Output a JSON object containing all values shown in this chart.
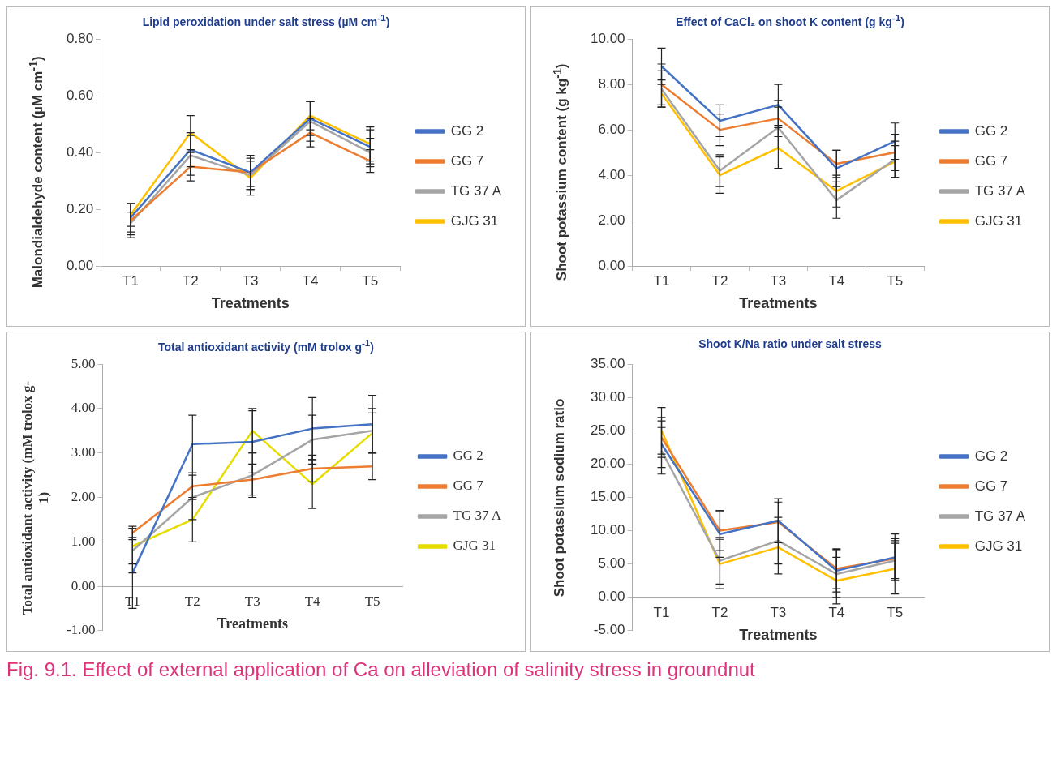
{
  "chart_data": [
    {
      "type": "line",
      "title": "Lipid peroxidation under salt stress (µM cm$^{-1}$)",
      "xlabel": "Treatments",
      "ylabel": "Malondialdehyde content (µM cm$^{-1}$)",
      "categories": [
        "T1",
        "T2",
        "T3",
        "T4",
        "T5"
      ],
      "legend": "right",
      "grid": false,
      "marker": "none",
      "ylim": [
        0,
        0.8
      ],
      "yticks": [
        {
          "value": 0,
          "label": "0.00"
        },
        {
          "value": 0.2,
          "label": "0.20"
        },
        {
          "value": 0.4,
          "label": "0.40"
        },
        {
          "value": 0.6,
          "label": "0.60"
        },
        {
          "value": 0.8,
          "label": "0.80"
        }
      ],
      "series": [
        {
          "name": "GG 2",
          "color": "#4472c4",
          "values": [
            0.17,
            0.41,
            0.33,
            0.52,
            0.42
          ],
          "errors": [
            0.05,
            0.06,
            0.06,
            0.06,
            0.06
          ]
        },
        {
          "name": "GG 7",
          "color": "#ed7d31",
          "values": [
            0.16,
            0.35,
            0.33,
            0.47,
            0.37
          ],
          "errors": [
            0.06,
            0.05,
            0.05,
            0.05,
            0.04
          ]
        },
        {
          "name": "TG 37 A",
          "color": "#a5a5a5",
          "values": [
            0.15,
            0.39,
            0.32,
            0.51,
            0.4
          ],
          "errors": [
            0.04,
            0.07,
            0.05,
            0.07,
            0.05
          ]
        },
        {
          "name": "GJG 31",
          "color": "#ffc000",
          "values": [
            0.18,
            0.47,
            0.31,
            0.53,
            0.43
          ],
          "errors": [
            0.04,
            0.06,
            0.06,
            0.05,
            0.06
          ]
        }
      ]
    },
    {
      "type": "line",
      "title": "Effect of CaCl₂ on shoot K content (g kg$^{-1}$)",
      "xlabel": "Treatments",
      "ylabel": "Shoot potassium content (g kg$^{-1}$)",
      "categories": [
        "T1",
        "T2",
        "T3",
        "T4",
        "T5"
      ],
      "legend": "right",
      "grid": false,
      "marker": "none",
      "ylim": [
        0,
        10
      ],
      "yticks": [
        {
          "value": 0,
          "label": "0.00"
        },
        {
          "value": 2,
          "label": "2.00"
        },
        {
          "value": 4,
          "label": "4.00"
        },
        {
          "value": 6,
          "label": "6.00"
        },
        {
          "value": 8,
          "label": "8.00"
        },
        {
          "value": 10,
          "label": "10.00"
        }
      ],
      "series": [
        {
          "name": "GG 2",
          "color": "#4472c4",
          "values": [
            8.8,
            6.4,
            7.1,
            4.3,
            5.5
          ],
          "errors": [
            0.8,
            0.7,
            0.9,
            0.8,
            0.8
          ]
        },
        {
          "name": "GG 7",
          "color": "#ed7d31",
          "values": [
            8.0,
            6.0,
            6.5,
            4.5,
            5.0
          ],
          "errors": [
            0.9,
            0.7,
            0.8,
            0.6,
            0.8
          ]
        },
        {
          "name": "TG 37 A",
          "color": "#a5a5a5",
          "values": [
            7.8,
            4.2,
            6.1,
            2.9,
            4.7
          ],
          "errors": [
            0.8,
            0.7,
            0.9,
            0.8,
            0.8
          ]
        },
        {
          "name": "GJG 31",
          "color": "#ffc000",
          "values": [
            7.6,
            4.0,
            5.2,
            3.3,
            4.6
          ],
          "errors": [
            0.6,
            0.8,
            0.9,
            0.7,
            0.7
          ]
        }
      ]
    },
    {
      "type": "line",
      "title": "Total antioxidant activity (mM trolox g$^{-1}$)",
      "xlabel": "Treatments",
      "ylabel": "Total antioxidant activity (mM trolox g-1)",
      "categories": [
        "T1",
        "T2",
        "T3",
        "T4",
        "T5"
      ],
      "legend": "right",
      "grid": false,
      "marker": "none",
      "ylim": [
        -1,
        5
      ],
      "yticks": [
        {
          "value": -1,
          "label": "-1.00"
        },
        {
          "value": 0,
          "label": "0.00"
        },
        {
          "value": 1,
          "label": "1.00"
        },
        {
          "value": 2,
          "label": "2.00"
        },
        {
          "value": 3,
          "label": "3.00"
        },
        {
          "value": 4,
          "label": "4.00"
        },
        {
          "value": 5,
          "label": "5.00"
        }
      ],
      "series": [
        {
          "name": "GG 2",
          "color": "#4472c4",
          "values": [
            0.3,
            3.2,
            3.25,
            3.55,
            3.65
          ],
          "errors": [
            0.8,
            0.65,
            0.7,
            0.7,
            0.65
          ]
        },
        {
          "name": "GG 7",
          "color": "#ed7d31",
          "values": [
            1.2,
            2.25,
            2.4,
            2.65,
            2.7
          ],
          "errors": [
            0.15,
            0.3,
            0.35,
            0.3,
            0.3
          ]
        },
        {
          "name": "TG 37 A",
          "color": "#a5a5a5",
          "values": [
            0.8,
            2.0,
            2.5,
            3.3,
            3.5
          ],
          "errors": [
            0.5,
            0.5,
            0.5,
            0.55,
            0.5
          ]
        },
        {
          "name": "GJG 31",
          "color": "#e6dc00",
          "values": [
            0.9,
            1.5,
            3.5,
            2.3,
            3.45
          ],
          "errors": [
            0.4,
            0.5,
            0.5,
            0.55,
            0.45
          ]
        }
      ]
    },
    {
      "type": "line",
      "title": "Shoot K/Na ratio under salt stress",
      "xlabel": "Treatments",
      "ylabel": "Shoot potassium sodium ratio",
      "categories": [
        "T1",
        "T2",
        "T3",
        "T4",
        "T5"
      ],
      "legend": "right",
      "grid": false,
      "marker": "none",
      "ylim": [
        -5,
        35
      ],
      "yticks": [
        {
          "value": -5,
          "label": "-5.00"
        },
        {
          "value": 0,
          "label": "0.00"
        },
        {
          "value": 5,
          "label": "5.00"
        },
        {
          "value": 10,
          "label": "10.00"
        },
        {
          "value": 15,
          "label": "15.00"
        },
        {
          "value": 20,
          "label": "20.00"
        },
        {
          "value": 25,
          "label": "25.00"
        },
        {
          "value": 30,
          "label": "30.00"
        },
        {
          "value": 35,
          "label": "35.00"
        }
      ],
      "annotations": [
        "Fig. 9.1. Effect of external application of Ca on alleviation of salinity stress in groundnut"
      ],
      "series": [
        {
          "name": "GG 2",
          "color": "#4472c4",
          "values": [
            23,
            9.5,
            11.5,
            4,
            6
          ],
          "errors": [
            3.5,
            3.5,
            3.3,
            3.2,
            3.5
          ]
        },
        {
          "name": "GG 7",
          "color": "#ed7d31",
          "values": [
            24,
            10,
            11.3,
            4.3,
            5.8
          ],
          "errors": [
            3,
            3,
            3,
            3,
            3
          ]
        },
        {
          "name": "TG 37 A",
          "color": "#a5a5a5",
          "values": [
            22,
            5.5,
            8.5,
            3.5,
            5.5
          ],
          "errors": [
            3.5,
            3.5,
            3.5,
            3.5,
            3
          ]
        },
        {
          "name": "GJG 31",
          "color": "#ffc000",
          "values": [
            25,
            5,
            7.5,
            2.5,
            4.3
          ],
          "errors": [
            3.5,
            3.7,
            4,
            3.5,
            3.8
          ]
        }
      ]
    }
  ]
}
